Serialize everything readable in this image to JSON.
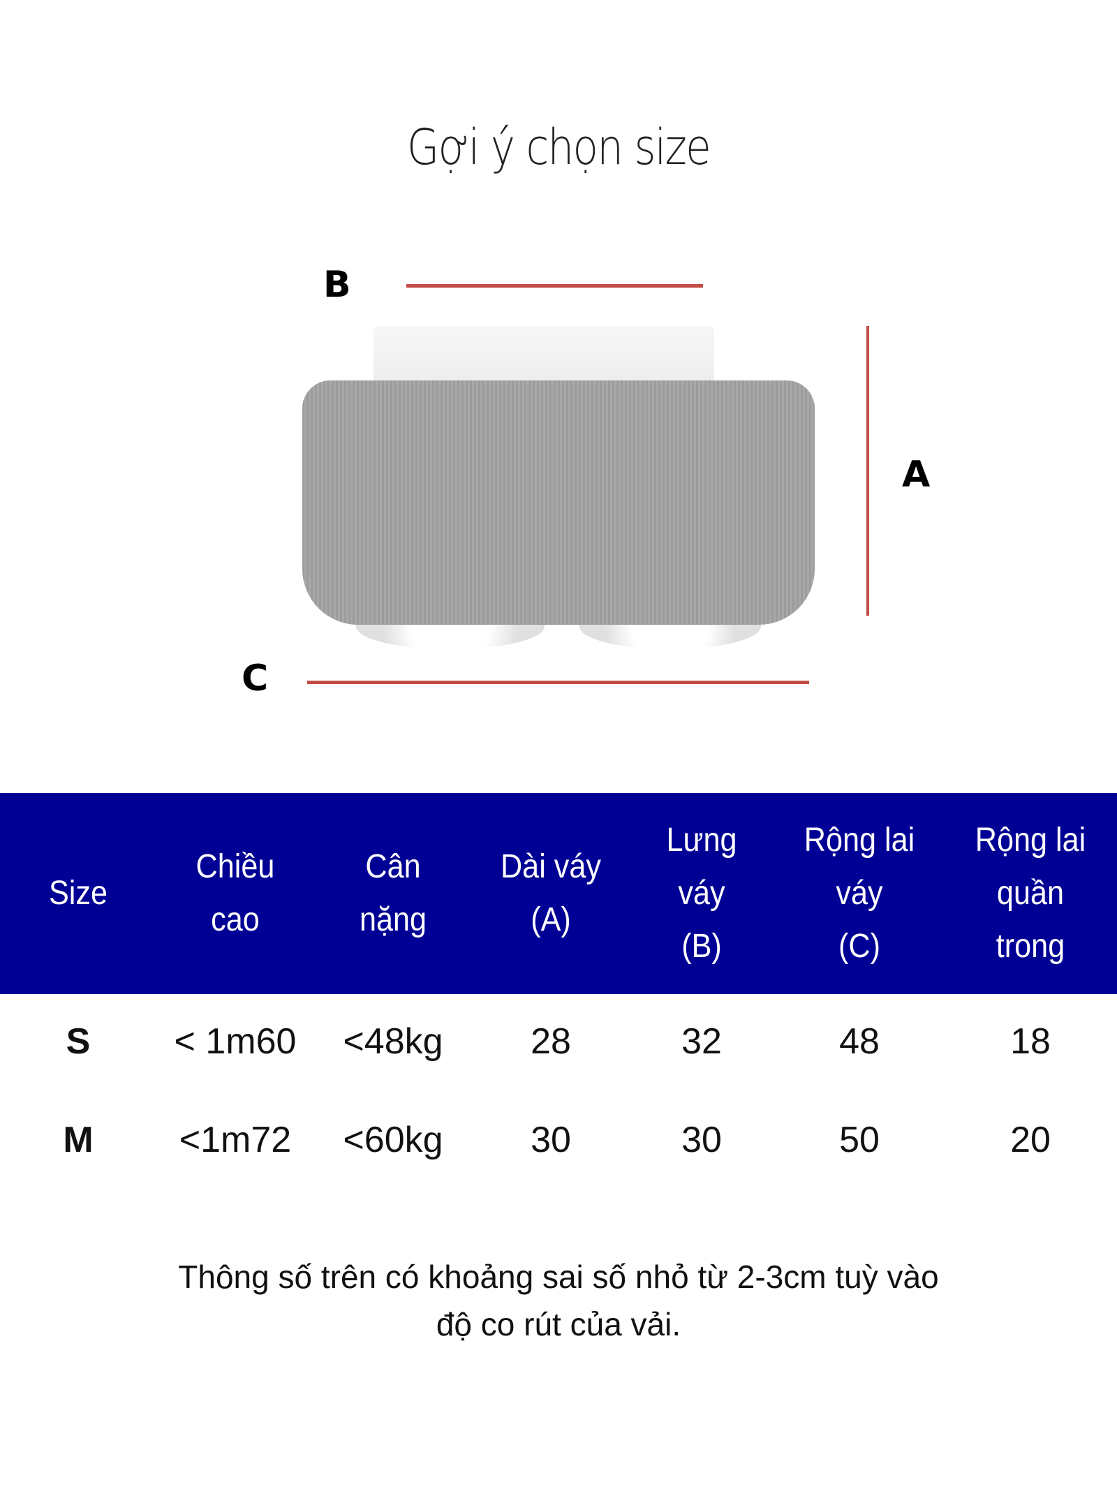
{
  "title": "Gợi ý chọn size",
  "diagram": {
    "labels": {
      "a": "A",
      "b": "B",
      "c": "C"
    },
    "line_color": "#c24b45"
  },
  "table": {
    "header_color": "#000094",
    "headers": [
      "Size",
      "Chiều\ncao",
      "Cân\nnặng",
      "Dài váy\n(A)",
      "Lưng\nváy\n(B)",
      "Rộng lai\nváy\n(C)",
      "Rộng lai\nquần\ntrong"
    ],
    "rows": [
      [
        "S",
        "< 1m60",
        "<48kg",
        "28",
        "32",
        "48",
        "18"
      ],
      [
        "M",
        "<1m72",
        "<60kg",
        "30",
        "30",
        "50",
        "20"
      ]
    ]
  },
  "note": {
    "line1": "Thông số trên có khoảng sai số nhỏ từ 2-3cm tuỳ vào",
    "line2": "độ co rút của vải."
  }
}
